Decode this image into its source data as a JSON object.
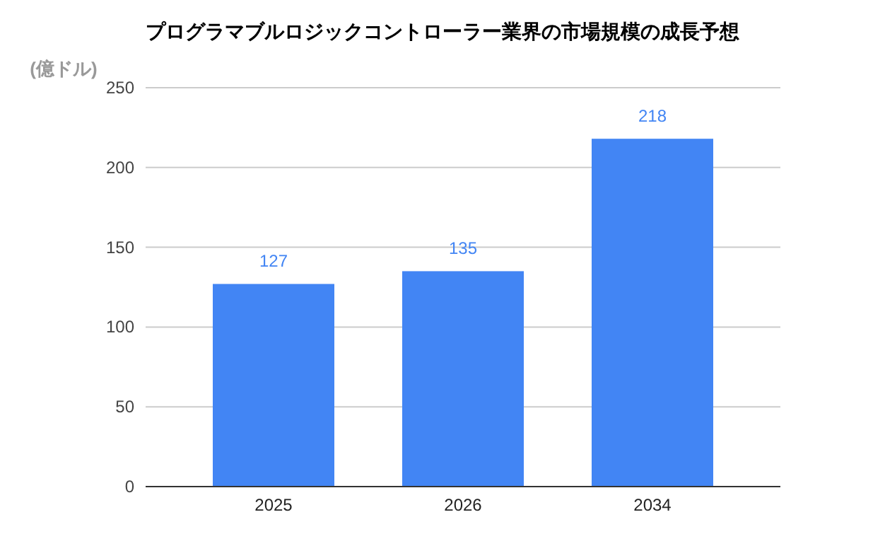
{
  "chart_data": {
    "type": "bar",
    "title": "プログラマブルロジックコントローラー業界の市場規模の成長予想",
    "ylabel": "(億ドル)",
    "categories": [
      "2025",
      "2026",
      "2034"
    ],
    "values": [
      127,
      135,
      218
    ],
    "color": "#4285f4",
    "ylim": [
      0,
      250
    ],
    "yticks": [
      0,
      50,
      100,
      150,
      200,
      250
    ],
    "grid": "y",
    "data_labels": true
  }
}
